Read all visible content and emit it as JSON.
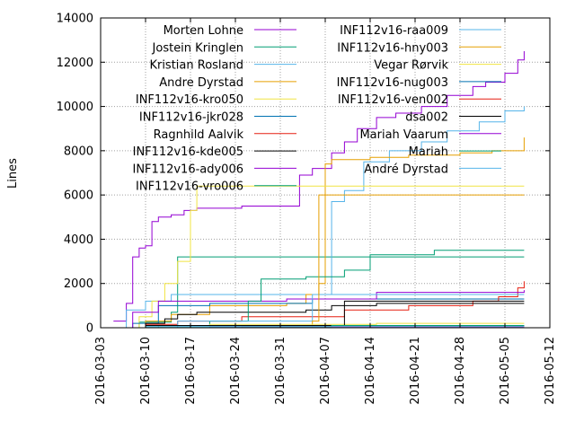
{
  "chart_data": {
    "type": "line",
    "title": "",
    "xlabel": "",
    "ylabel": "Lines",
    "xlim": [
      "2016-03-03",
      "2016-05-12"
    ],
    "ylim": [
      0,
      14000
    ],
    "x_ticks": [
      "2016-03-03",
      "2016-03-10",
      "2016-03-17",
      "2016-03-24",
      "2016-03-31",
      "2016-04-07",
      "2016-04-14",
      "2016-04-21",
      "2016-04-28",
      "2016-05-05",
      "2016-05-12"
    ],
    "y_ticks": [
      0,
      2000,
      4000,
      6000,
      8000,
      10000,
      12000,
      14000
    ],
    "grid": true,
    "legend_position": "top",
    "series": [
      {
        "name": "Morten Lohne",
        "color": "#9400d3",
        "x": [
          "2016-03-05",
          "2016-03-07",
          "2016-03-08",
          "2016-03-09",
          "2016-03-10",
          "2016-03-11",
          "2016-03-12",
          "2016-03-14",
          "2016-03-16",
          "2016-03-18",
          "2016-03-25",
          "2016-04-01",
          "2016-04-03",
          "2016-04-05",
          "2016-04-08",
          "2016-04-10",
          "2016-04-12",
          "2016-04-15",
          "2016-04-18",
          "2016-04-22",
          "2016-04-26",
          "2016-04-30",
          "2016-05-02",
          "2016-05-05",
          "2016-05-07",
          "2016-05-08"
        ],
        "values": [
          300,
          1100,
          3200,
          3600,
          3700,
          4800,
          5000,
          5100,
          5300,
          5400,
          5500,
          5500,
          6900,
          7200,
          7900,
          8400,
          9000,
          9500,
          9700,
          10000,
          10500,
          10900,
          11100,
          11500,
          12100,
          12500
        ]
      },
      {
        "name": "Jostein Kringlen",
        "color": "#009e73",
        "x": [
          "2016-03-05",
          "2016-03-09",
          "2016-03-14",
          "2016-03-15",
          "2016-03-25",
          "2016-03-29",
          "2016-04-02",
          "2016-04-05",
          "2016-04-12",
          "2016-04-17",
          "2016-05-08"
        ],
        "values": [
          0,
          250,
          700,
          3200,
          3200,
          3200,
          3200,
          3200,
          3200,
          3200,
          3200
        ]
      },
      {
        "name": "Kristian Rosland",
        "color": "#56b4e9",
        "x": [
          "2016-03-05",
          "2016-03-07",
          "2016-03-10",
          "2016-03-14",
          "2016-04-05",
          "2016-04-08",
          "2016-04-10",
          "2016-04-13",
          "2016-04-17",
          "2016-04-22",
          "2016-04-26",
          "2016-05-01",
          "2016-05-05",
          "2016-05-08"
        ],
        "values": [
          0,
          800,
          1200,
          1500,
          1500,
          5700,
          6200,
          7500,
          8000,
          8400,
          8900,
          9300,
          9800,
          10000
        ]
      },
      {
        "name": "Andre Dyrstad",
        "color": "#e69f00",
        "x": [
          "2016-03-05",
          "2016-03-10",
          "2016-03-14",
          "2016-03-20",
          "2016-04-01",
          "2016-04-04",
          "2016-04-06",
          "2016-04-07",
          "2016-04-08",
          "2016-04-14",
          "2016-04-20",
          "2016-04-28",
          "2016-05-03",
          "2016-05-08"
        ],
        "values": [
          0,
          300,
          600,
          1000,
          1100,
          1500,
          2000,
          7400,
          7600,
          7700,
          7800,
          7900,
          8000,
          8600
        ]
      },
      {
        "name": "INF112v16-kro050",
        "color": "#f0e442",
        "x": [
          "2016-03-05",
          "2016-03-09",
          "2016-03-11",
          "2016-03-13",
          "2016-03-15",
          "2016-03-17",
          "2016-03-18",
          "2016-05-08"
        ],
        "values": [
          0,
          500,
          1200,
          2000,
          3000,
          5300,
          6400,
          6400
        ]
      },
      {
        "name": "INF112v16-jkr028",
        "color": "#0072b2",
        "x": [
          "2016-03-05",
          "2016-03-08",
          "2016-03-12",
          "2016-03-20",
          "2016-04-05",
          "2016-05-08"
        ],
        "values": [
          0,
          200,
          1000,
          1100,
          1300,
          1300
        ]
      },
      {
        "name": "Ragnhild Aalvik",
        "color": "#e51e10",
        "x": [
          "2016-03-05",
          "2016-03-10",
          "2016-03-15",
          "2016-03-25",
          "2016-04-10",
          "2016-04-20",
          "2016-04-30",
          "2016-05-04",
          "2016-05-07",
          "2016-05-08"
        ],
        "values": [
          0,
          150,
          300,
          500,
          800,
          1000,
          1200,
          1400,
          1800,
          2100
        ]
      },
      {
        "name": "INF112v16-kde005",
        "color": "#000000",
        "x": [
          "2016-03-05",
          "2016-03-10",
          "2016-03-13",
          "2016-03-15",
          "2016-03-18",
          "2016-04-04",
          "2016-04-08",
          "2016-04-15",
          "2016-05-08"
        ],
        "values": [
          0,
          200,
          400,
          600,
          700,
          800,
          1000,
          1100,
          1100
        ]
      },
      {
        "name": "INF112v16-ady006",
        "color": "#9400d3",
        "x": [
          "2016-03-05",
          "2016-03-08",
          "2016-03-12",
          "2016-04-01",
          "2016-04-15",
          "2016-05-08"
        ],
        "values": [
          0,
          700,
          1200,
          1300,
          1600,
          1700
        ]
      },
      {
        "name": "INF112v16-vro006",
        "color": "#009e73",
        "x": [
          "2016-03-05",
          "2016-03-12",
          "2016-03-20",
          "2016-03-26",
          "2016-03-28",
          "2016-04-04",
          "2016-04-10",
          "2016-04-14",
          "2016-04-24",
          "2016-05-08"
        ],
        "values": [
          0,
          100,
          300,
          1200,
          2200,
          2300,
          2600,
          3300,
          3500,
          3500
        ]
      },
      {
        "name": "INF112v16-raa009",
        "color": "#56b4e9",
        "x": [
          "2016-03-05",
          "2016-03-10",
          "2016-03-15",
          "2016-04-05",
          "2016-05-08"
        ],
        "values": [
          0,
          100,
          300,
          1500,
          1500
        ]
      },
      {
        "name": "INF112v16-hny003",
        "color": "#e69f00",
        "x": [
          "2016-03-05",
          "2016-04-05",
          "2016-04-06",
          "2016-05-08"
        ],
        "values": [
          0,
          300,
          6000,
          6000
        ]
      },
      {
        "name": "Vegar Rørvik",
        "color": "#f0e442",
        "x": [
          "2016-03-05",
          "2016-03-10",
          "2016-03-20",
          "2016-04-15",
          "2016-05-08"
        ],
        "values": [
          0,
          100,
          150,
          200,
          200
        ]
      },
      {
        "name": "INF112v16-nug003",
        "color": "#0072b2",
        "x": [
          "2016-03-05",
          "2016-03-15",
          "2016-05-08"
        ],
        "values": [
          0,
          100,
          100
        ]
      },
      {
        "name": "INF112v16-ven002",
        "color": "#e51e10",
        "x": [
          "2016-03-05",
          "2016-03-25",
          "2016-05-08"
        ],
        "values": [
          0,
          50,
          50
        ]
      },
      {
        "name": "dsa002",
        "color": "#000000",
        "x": [
          "2016-03-05",
          "2016-03-10",
          "2016-04-10",
          "2016-05-08"
        ],
        "values": [
          0,
          100,
          1200,
          1200
        ]
      },
      {
        "name": "Mariah Vaarum",
        "color": "#9400d3",
        "x": [
          "2016-03-05",
          "2016-03-20",
          "2016-05-08"
        ],
        "values": [
          0,
          50,
          50
        ]
      },
      {
        "name": "Mariah",
        "color": "#009e73",
        "x": [
          "2016-03-05",
          "2016-03-10",
          "2016-04-08",
          "2016-05-08"
        ],
        "values": [
          0,
          50,
          100,
          100
        ]
      },
      {
        "name": "André Dyrstad",
        "color": "#56b4e9",
        "x": [
          "2016-03-05",
          "2016-03-10",
          "2016-05-08"
        ],
        "values": [
          0,
          50,
          50
        ]
      }
    ]
  }
}
